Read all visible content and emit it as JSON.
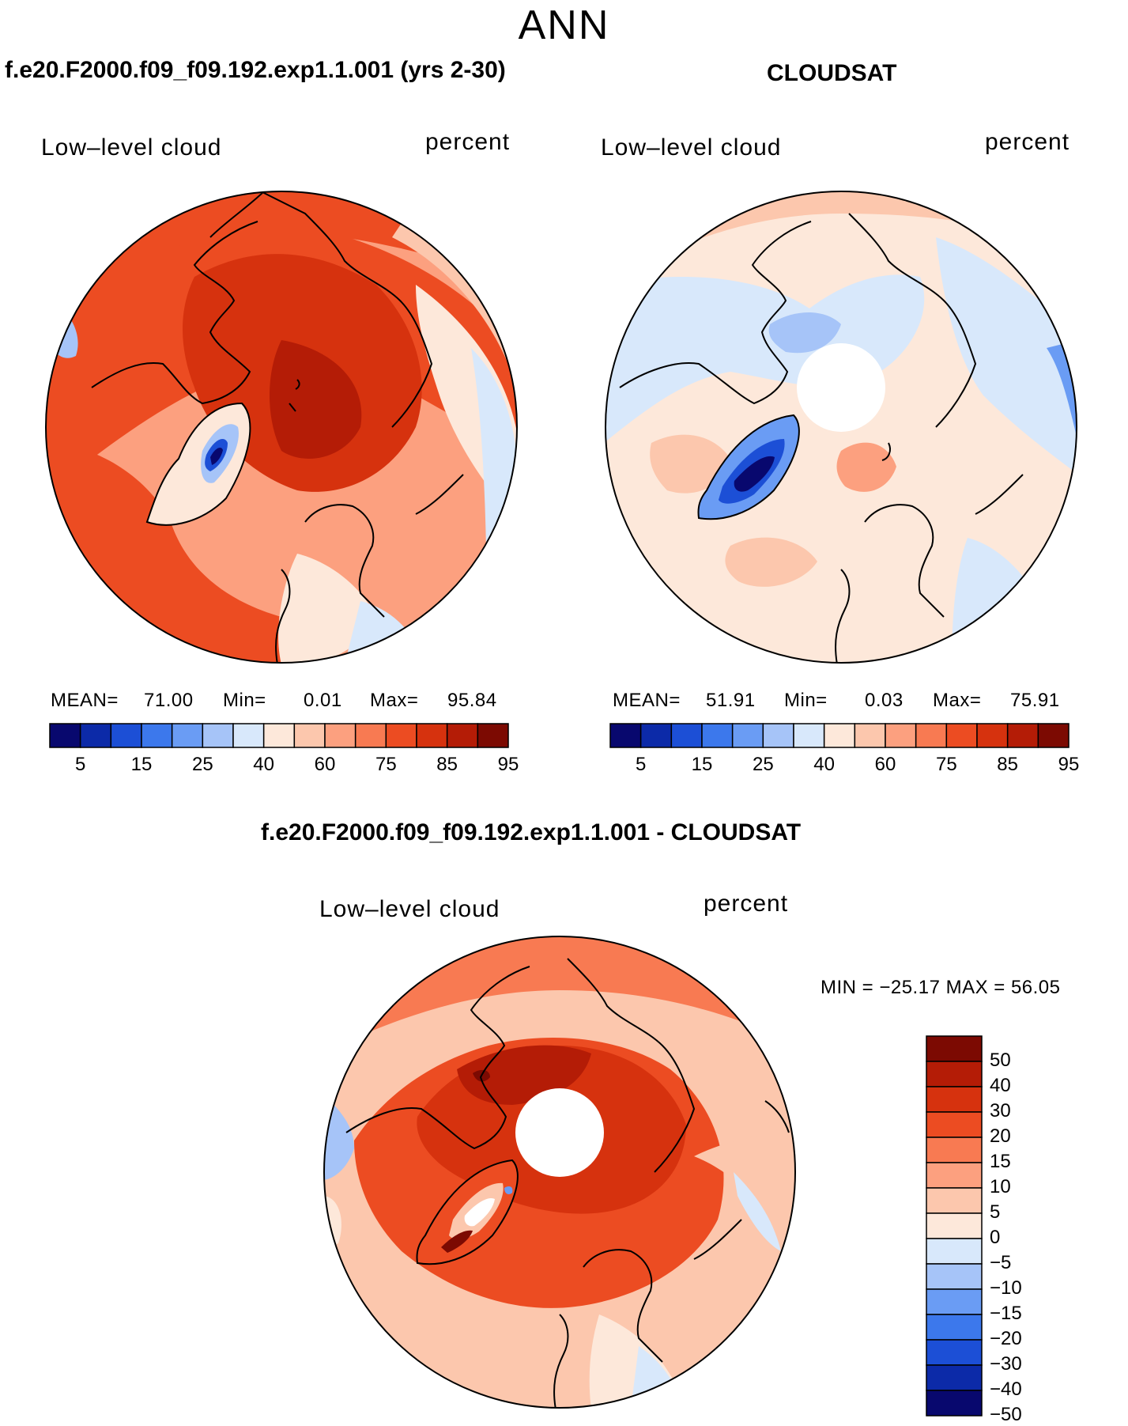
{
  "main_title": "ANN",
  "panel_left": {
    "title": "f.e20.F2000.f09_f09.192.exp1.1.001 (yrs 2-30)",
    "variable": "Low–level cloud",
    "units": "percent",
    "mean_label": "MEAN=",
    "mean_value": "71.00",
    "min_label": "Min=",
    "min_value": "0.01",
    "max_label": "Max=",
    "max_value": "95.84"
  },
  "panel_right": {
    "title": "CLOUDSAT",
    "variable": "Low–level cloud",
    "units": "percent",
    "mean_label": "MEAN=",
    "mean_value": "51.91",
    "min_label": "Min=",
    "min_value": "0.03",
    "max_label": "Max=",
    "max_value": "75.91"
  },
  "panel_diff": {
    "title": "f.e20.F2000.f09_f09.192.exp1.1.001 - CLOUDSAT",
    "variable": "Low–level cloud",
    "units": "percent",
    "minmax_text": "MIN = −25.17  MAX =   56.05"
  },
  "colorbar_abs": {
    "colors": [
      "#08086e",
      "#0c2aa8",
      "#1c4fd6",
      "#3c78ec",
      "#6a9cf4",
      "#a6c4f8",
      "#d8e8fb",
      "#fde8da",
      "#fcc7ad",
      "#fca07f",
      "#f87a52",
      "#ec4c22",
      "#d6320e",
      "#b41c06",
      "#7c0a02"
    ],
    "tick_labels": [
      "5",
      "15",
      "25",
      "40",
      "60",
      "75",
      "85",
      "95"
    ]
  },
  "colorbar_diff": {
    "colors": [
      "#7c0a02",
      "#b41c06",
      "#d6320e",
      "#ec4c22",
      "#f87a52",
      "#fca07f",
      "#fcc7ad",
      "#fde8da",
      "#d8e8fb",
      "#a6c4f8",
      "#6a9cf4",
      "#3c78ec",
      "#1c4fd6",
      "#0c2aa8",
      "#08086e"
    ],
    "tick_labels": [
      "50",
      "40",
      "30",
      "20",
      "15",
      "10",
      "5",
      "0",
      "−5",
      "−10",
      "−15",
      "−20",
      "−30",
      "−40",
      "−50"
    ]
  }
}
